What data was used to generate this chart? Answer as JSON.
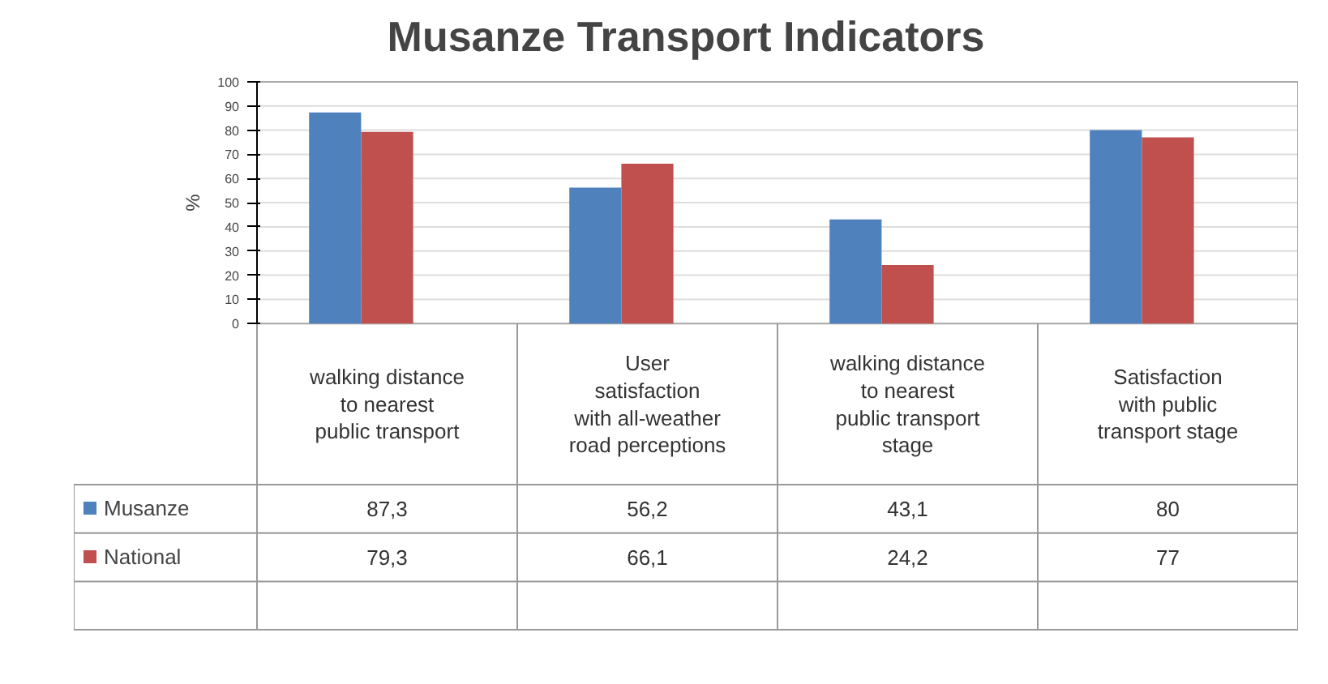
{
  "chart_data": {
    "type": "bar",
    "title": "Musanze Transport Indicators",
    "ylabel": "%",
    "categories": [
      "walking distance to nearest public transport",
      "User satisfaction with all-weather road perceptions",
      "walking distance to nearest public transport stage",
      "Satisfaction with public transport stage"
    ],
    "series": [
      {
        "name": "Musanze",
        "color": "#4f81bd",
        "values": [
          87.3,
          56.2,
          43.1,
          80
        ],
        "value_labels": [
          "87,3",
          "56,2",
          "43,1",
          "80"
        ]
      },
      {
        "name": "National",
        "color": "#c0504d",
        "values": [
          79.3,
          66.1,
          24.2,
          77
        ],
        "value_labels": [
          "79,3",
          "66,1",
          "24,2",
          "77"
        ]
      },
      {
        "color": "#9bbb59",
        "values": [
          null,
          null,
          null,
          null
        ]
      }
    ],
    "ylim": [
      0,
      100
    ],
    "yticks": [
      0,
      10,
      20,
      30,
      40,
      50,
      60,
      70,
      80,
      90,
      100
    ],
    "grid": "y",
    "legend": "bottom"
  }
}
